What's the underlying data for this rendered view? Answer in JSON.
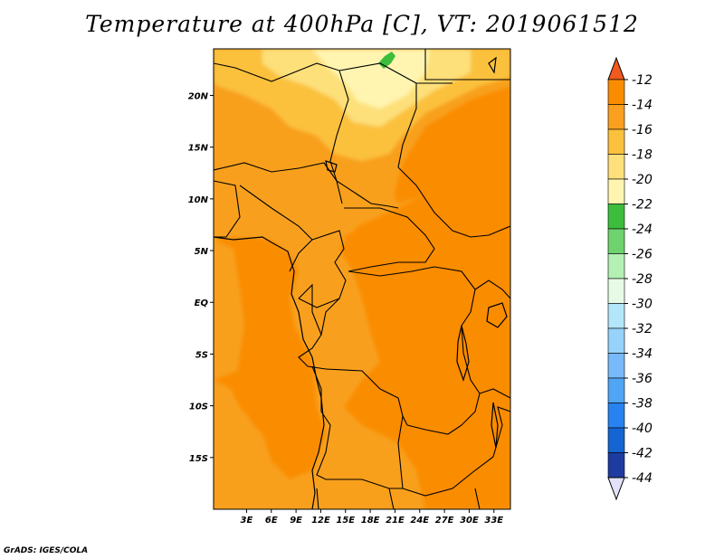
{
  "title": "Temperature at 400hPa [C], VT: 2019061512",
  "credit": "GrADS: IGES/COLA",
  "map": {
    "type": "filled-contour",
    "variable": "temperature",
    "level": "400hPa",
    "units": "C",
    "lon_range": [
      -1,
      35
    ],
    "lat_range": [
      -20,
      24.5
    ],
    "lat_ticks": [
      {
        "value": 20,
        "label": "20N"
      },
      {
        "value": 15,
        "label": "15N"
      },
      {
        "value": 10,
        "label": "10N"
      },
      {
        "value": 5,
        "label": "5N"
      },
      {
        "value": 0,
        "label": "EQ"
      },
      {
        "value": -5,
        "label": "5S"
      },
      {
        "value": -10,
        "label": "10S"
      },
      {
        "value": -15,
        "label": "15S"
      }
    ],
    "lon_ticks": [
      {
        "value": 3,
        "label": "3E"
      },
      {
        "value": 6,
        "label": "6E"
      },
      {
        "value": 9,
        "label": "9E"
      },
      {
        "value": 12,
        "label": "12E"
      },
      {
        "value": 15,
        "label": "15E"
      },
      {
        "value": 18,
        "label": "18E"
      },
      {
        "value": 21,
        "label": "21E"
      },
      {
        "value": 24,
        "label": "24E"
      },
      {
        "value": 27,
        "label": "27E"
      },
      {
        "value": 30,
        "label": "30E"
      },
      {
        "value": 33,
        "label": "33E"
      }
    ],
    "colors": {
      "gt_-12": "#f05a1e",
      "-14_-12": "#fa8c00",
      "-16_-14": "#f8a01e",
      "-18_-16": "#fbc13c",
      "-20_-18": "#fde07a",
      "-22_-20": "#fff5b0",
      "-24_-22": "#3cbe3c",
      "border": "#000000"
    }
  },
  "colorbar": {
    "labels": [
      "-12",
      "-14",
      "-16",
      "-18",
      "-20",
      "-22",
      "-24",
      "-26",
      "-28",
      "-30",
      "-32",
      "-34",
      "-36",
      "-38",
      "-40",
      "-42",
      "-44"
    ],
    "colors": [
      "#fa5a10",
      "#fa8c00",
      "#faa01e",
      "#fbc13c",
      "#fde07a",
      "#fff5b0",
      "#3cbe3c",
      "#6ed26e",
      "#b4f0b4",
      "#e6fae6",
      "#b4e6fa",
      "#96d2fa",
      "#78b9fa",
      "#50a5f5",
      "#2882f0",
      "#1464d2",
      "#1e3ca0",
      "#0a0a78",
      "#e1e1fa"
    ],
    "top_color": "#f05a1e",
    "bottom_color": "#e1e1fa"
  }
}
